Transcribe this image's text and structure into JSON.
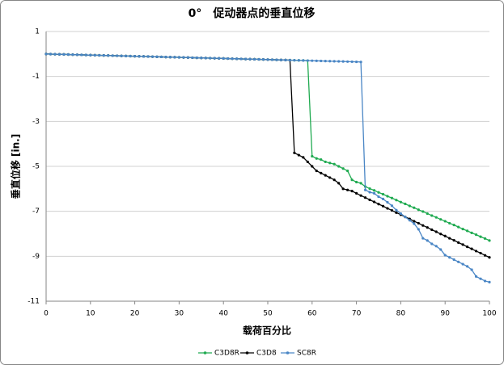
{
  "chart_data": {
    "type": "line",
    "title": "0°　促动器点的垂直位移",
    "xlabel": "载荷百分比",
    "ylabel": "垂直位移 [in.]",
    "x": [
      0,
      1,
      2,
      3,
      4,
      5,
      6,
      7,
      8,
      9,
      10,
      11,
      12,
      13,
      14,
      15,
      16,
      17,
      18,
      19,
      20,
      21,
      22,
      23,
      24,
      25,
      26,
      27,
      28,
      29,
      30,
      31,
      32,
      33,
      34,
      35,
      36,
      37,
      38,
      39,
      40,
      41,
      42,
      43,
      44,
      45,
      46,
      47,
      48,
      49,
      50,
      51,
      52,
      53,
      54,
      55,
      56,
      57,
      58,
      59,
      60,
      61,
      62,
      63,
      64,
      65,
      66,
      67,
      68,
      69,
      70,
      71,
      72,
      73,
      74,
      75,
      76,
      77,
      78,
      79,
      80,
      81,
      82,
      83,
      84,
      85,
      86,
      87,
      88,
      89,
      90,
      91,
      92,
      93,
      94,
      95,
      96,
      97,
      98,
      99,
      100
    ],
    "series": [
      {
        "name": "C3D8R",
        "color": "#1faa50",
        "values": [
          0,
          -0.005,
          -0.01,
          -0.015,
          -0.02,
          -0.025,
          -0.03,
          -0.035,
          -0.04,
          -0.045,
          -0.05,
          -0.055,
          -0.06,
          -0.065,
          -0.07,
          -0.075,
          -0.08,
          -0.085,
          -0.09,
          -0.095,
          -0.1,
          -0.105,
          -0.11,
          -0.115,
          -0.12,
          -0.125,
          -0.13,
          -0.135,
          -0.14,
          -0.145,
          -0.15,
          -0.155,
          -0.16,
          -0.165,
          -0.17,
          -0.175,
          -0.18,
          -0.185,
          -0.19,
          -0.195,
          -0.2,
          -0.205,
          -0.21,
          -0.215,
          -0.22,
          -0.225,
          -0.23,
          -0.235,
          -0.24,
          -0.245,
          -0.25,
          -0.255,
          -0.26,
          -0.265,
          -0.27,
          -0.275,
          -0.28,
          -0.285,
          -0.29,
          -0.295,
          -4.55,
          -4.65,
          -4.7,
          -4.8,
          -4.85,
          -4.9,
          -5.0,
          -5.1,
          -5.2,
          -5.6,
          -5.7,
          -5.75,
          -5.9,
          -5.99,
          -6.07,
          -6.16,
          -6.24,
          -6.33,
          -6.41,
          -6.5,
          -6.59,
          -6.67,
          -6.76,
          -6.84,
          -6.93,
          -7.01,
          -7.1,
          -7.19,
          -7.27,
          -7.36,
          -7.44,
          -7.53,
          -7.61,
          -7.7,
          -7.79,
          -7.87,
          -7.96,
          -8.04,
          -8.13,
          -8.21,
          -8.3
        ]
      },
      {
        "name": "C3D8",
        "color": "#000000",
        "values": [
          0,
          -0.005,
          -0.01,
          -0.015,
          -0.02,
          -0.025,
          -0.03,
          -0.035,
          -0.04,
          -0.045,
          -0.05,
          -0.055,
          -0.06,
          -0.065,
          -0.07,
          -0.075,
          -0.08,
          -0.085,
          -0.09,
          -0.095,
          -0.1,
          -0.105,
          -0.11,
          -0.115,
          -0.12,
          -0.125,
          -0.13,
          -0.135,
          -0.14,
          -0.145,
          -0.15,
          -0.155,
          -0.16,
          -0.165,
          -0.17,
          -0.175,
          -0.18,
          -0.185,
          -0.19,
          -0.195,
          -0.2,
          -0.205,
          -0.21,
          -0.215,
          -0.22,
          -0.225,
          -0.23,
          -0.235,
          -0.24,
          -0.245,
          -0.25,
          -0.255,
          -0.26,
          -0.265,
          -0.27,
          -0.275,
          -4.4,
          -4.5,
          -4.6,
          -4.8,
          -5.0,
          -5.2,
          -5.3,
          -5.4,
          -5.5,
          -5.6,
          -5.75,
          -6.0,
          -6.05,
          -6.1,
          -6.2,
          -6.3,
          -6.39,
          -6.49,
          -6.58,
          -6.68,
          -6.77,
          -6.87,
          -6.96,
          -7.06,
          -7.15,
          -7.25,
          -7.34,
          -7.44,
          -7.53,
          -7.63,
          -7.72,
          -7.82,
          -7.91,
          -8.01,
          -8.1,
          -8.2,
          -8.29,
          -8.39,
          -8.48,
          -8.58,
          -8.67,
          -8.77,
          -8.86,
          -8.96,
          -9.05
        ]
      },
      {
        "name": "SC8R",
        "color": "#4a86c5",
        "values": [
          0,
          -0.005,
          -0.01,
          -0.015,
          -0.02,
          -0.025,
          -0.03,
          -0.035,
          -0.04,
          -0.045,
          -0.05,
          -0.055,
          -0.06,
          -0.065,
          -0.07,
          -0.075,
          -0.08,
          -0.085,
          -0.09,
          -0.095,
          -0.1,
          -0.105,
          -0.11,
          -0.115,
          -0.12,
          -0.125,
          -0.13,
          -0.135,
          -0.14,
          -0.145,
          -0.15,
          -0.155,
          -0.16,
          -0.165,
          -0.17,
          -0.175,
          -0.18,
          -0.185,
          -0.19,
          -0.195,
          -0.2,
          -0.205,
          -0.21,
          -0.215,
          -0.22,
          -0.225,
          -0.23,
          -0.235,
          -0.24,
          -0.245,
          -0.25,
          -0.255,
          -0.26,
          -0.265,
          -0.27,
          -0.275,
          -0.28,
          -0.285,
          -0.29,
          -0.295,
          -0.3,
          -0.305,
          -0.31,
          -0.315,
          -0.32,
          -0.325,
          -0.33,
          -0.335,
          -0.34,
          -0.345,
          -0.35,
          -0.355,
          -6.05,
          -6.15,
          -6.2,
          -6.35,
          -6.45,
          -6.6,
          -6.75,
          -6.95,
          -7.1,
          -7.25,
          -7.4,
          -7.55,
          -7.8,
          -8.2,
          -8.3,
          -8.45,
          -8.55,
          -8.7,
          -8.95,
          -9.05,
          -9.15,
          -9.25,
          -9.35,
          -9.45,
          -9.6,
          -9.9,
          -10.0,
          -10.1,
          -10.15
        ]
      }
    ],
    "xlim": [
      0,
      100
    ],
    "xticks": [
      0,
      10,
      20,
      30,
      40,
      50,
      60,
      70,
      80,
      90,
      100
    ],
    "ylim": [
      -11,
      1
    ],
    "yticks": [
      1,
      -1,
      -3,
      -5,
      -7,
      -9,
      -11
    ],
    "grid": true,
    "legend": "bottom"
  }
}
